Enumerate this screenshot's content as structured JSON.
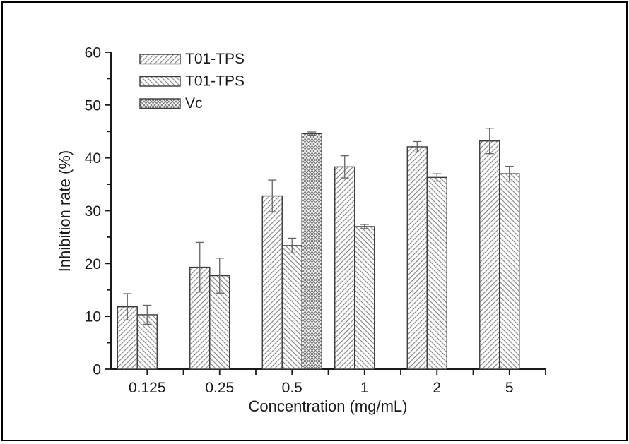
{
  "figure": {
    "background": "#ffffff",
    "frame_border_color": "#000000"
  },
  "colors": {
    "axis": "#1a1a1a",
    "text": "#1a1a1a",
    "bar_outline": "#3a3a3a",
    "bar_fill": "#ffffff",
    "hatch_line": "#8f8f8f",
    "crosshatch_line": "#777777",
    "error_bar": "#636363"
  },
  "chart_data": {
    "type": "bar",
    "title": "",
    "xlabel": "Concentration (mg/mL)",
    "ylabel": "Inhibition rate (%)",
    "categories": [
      "0.125",
      "0.25",
      "0.5",
      "1",
      "2",
      "5"
    ],
    "ylim": [
      0,
      60
    ],
    "yticks": [
      0,
      10,
      20,
      30,
      40,
      50,
      60
    ],
    "y_minor_tick_step": 5,
    "grid": false,
    "legend_position": "top-left-inside",
    "series": [
      {
        "name": "T01-TPS",
        "hatch": "diagonal-up",
        "values": [
          11.8,
          19.3,
          32.8,
          38.3,
          42.1,
          43.2
        ],
        "errors": [
          2.5,
          4.7,
          3.0,
          2.1,
          1.0,
          2.4
        ]
      },
      {
        "name": "T01-TPS",
        "hatch": "diagonal-down",
        "values": [
          10.3,
          17.7,
          23.4,
          27.0,
          36.3,
          37.0
        ],
        "errors": [
          1.8,
          3.3,
          1.4,
          0.4,
          0.7,
          1.4
        ]
      },
      {
        "name": "Vc",
        "hatch": "crosshatch",
        "values": [
          null,
          null,
          44.6,
          null,
          null,
          null
        ],
        "errors": [
          null,
          null,
          0.3,
          null,
          null,
          null
        ]
      }
    ]
  }
}
